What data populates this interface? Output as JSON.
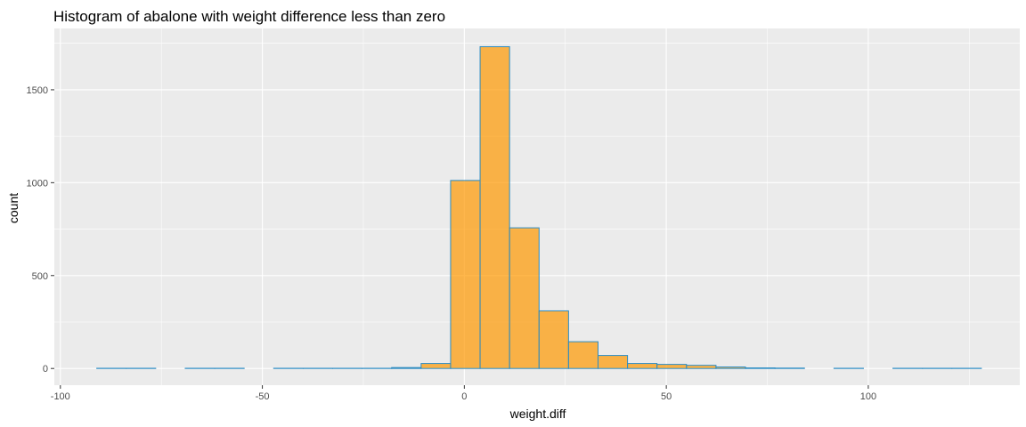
{
  "chart_data": {
    "type": "bar",
    "title": "Histogram of abalone with weight difference less than zero",
    "xlabel": "weight.diff",
    "ylabel": "count",
    "xlim": [
      -101.5,
      137.5
    ],
    "ylim": [
      -90,
      1830
    ],
    "x_ticks": [
      -100,
      -50,
      0,
      50,
      100
    ],
    "x_tick_labels": [
      "-100",
      "-50",
      "0",
      "50",
      "100"
    ],
    "y_ticks": [
      0,
      500,
      1000,
      1500
    ],
    "y_tick_labels": [
      "0",
      "500",
      "1000",
      "1500"
    ],
    "bin_edges": [
      -91,
      -83.7,
      -76.4,
      -69.1,
      -61.8,
      -54.5,
      -47.2,
      -39.9,
      -32.6,
      -25.3,
      -18.0,
      -10.7,
      -3.4,
      3.9,
      11.2,
      18.5,
      25.8,
      33.1,
      40.4,
      47.7,
      55.0,
      62.3,
      69.6,
      76.9,
      84.2,
      91.5,
      98.8,
      106.1,
      113.4,
      120.7,
      128.0
    ],
    "counts": [
      1,
      1,
      0,
      1,
      1,
      0,
      1,
      1,
      1,
      1,
      5,
      27,
      1012,
      1732,
      757,
      310,
      144,
      70,
      27,
      22,
      17,
      8,
      3,
      2,
      0,
      1,
      0,
      1,
      1,
      1
    ],
    "bar_fill": "#ff9900",
    "bar_fill_opacity": 0.7,
    "bar_outline": "#2b8cc4",
    "panel_background": "#ebebeb",
    "grid_color": "#ffffff"
  }
}
